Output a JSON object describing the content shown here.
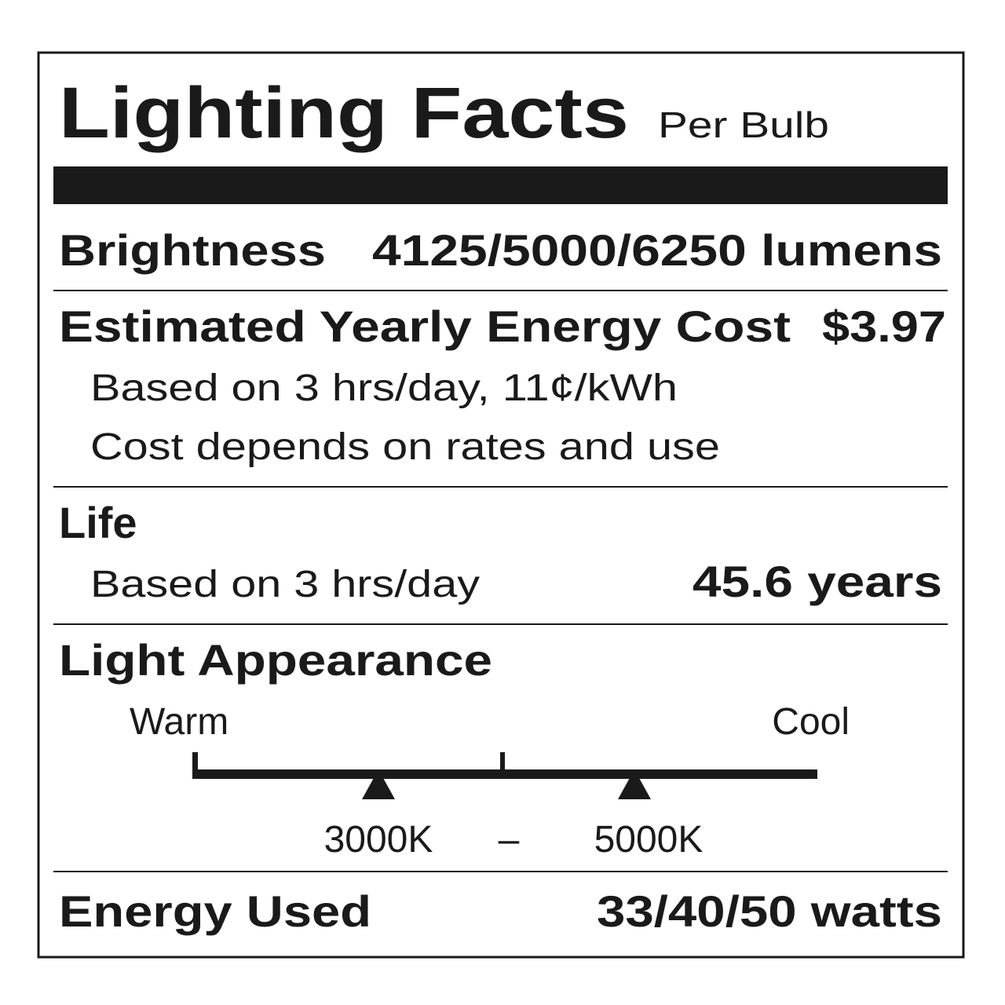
{
  "header": {
    "title": "Lighting Facts",
    "subtitle": "Per Bulb"
  },
  "brightness": {
    "label": "Brightness",
    "value": "4125/5000/6250 lumens"
  },
  "energy_cost": {
    "label": "Estimated Yearly Energy Cost",
    "value": "$3.97",
    "notes": [
      "Based on 3 hrs/day, 11¢/kWh",
      "Cost depends on rates and use"
    ]
  },
  "life": {
    "label": "Life",
    "note": "Based on 3 hrs/day",
    "value": "45.6 years"
  },
  "light_appearance": {
    "label": "Light Appearance",
    "warm": "Warm",
    "cool": "Cool",
    "low": "3000K",
    "separator": "–",
    "high": "5000K"
  },
  "energy_used": {
    "label": "Energy Used",
    "value": "33/40/50 watts"
  }
}
